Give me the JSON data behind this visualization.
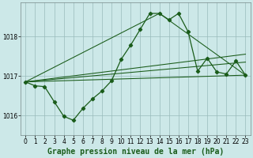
{
  "bg_color": "#cce8e8",
  "line_color": "#1a5c1a",
  "grid_color": "#99bbbb",
  "title": "Graphe pression niveau de la mer (hPa)",
  "xlim": [
    -0.5,
    23.5
  ],
  "ylim": [
    1015.5,
    1018.85
  ],
  "yticks": [
    1016,
    1017,
    1018
  ],
  "xticks": [
    0,
    1,
    2,
    3,
    4,
    5,
    6,
    7,
    8,
    9,
    10,
    11,
    12,
    13,
    14,
    15,
    16,
    17,
    18,
    19,
    20,
    21,
    22,
    23
  ],
  "line1_x": [
    0,
    1,
    2,
    3,
    4,
    5,
    6,
    7,
    8,
    9,
    10,
    11,
    12,
    13,
    14,
    15,
    16,
    17,
    18,
    19,
    20,
    21,
    22,
    23
  ],
  "line1_y": [
    1016.85,
    1016.75,
    1016.73,
    1016.35,
    1015.98,
    1015.88,
    1016.18,
    1016.42,
    1016.62,
    1016.88,
    1017.42,
    1017.78,
    1018.18,
    1018.58,
    1018.58,
    1018.42,
    1018.58,
    1018.12,
    1017.12,
    1017.45,
    1017.1,
    1017.05,
    1017.38,
    1017.02
  ],
  "line3_x": [
    0,
    23
  ],
  "line3_y": [
    1016.85,
    1017.02
  ],
  "line4_x": [
    0,
    10,
    23
  ],
  "line4_y": [
    1016.85,
    1017.02,
    1017.02
  ],
  "line5_x": [
    0,
    14,
    23
  ],
  "line5_y": [
    1016.85,
    1018.58,
    1017.02
  ],
  "title_fontsize": 7,
  "tick_fontsize": 5.5,
  "marker": "D",
  "markersize": 2.2,
  "linewidth": 0.9
}
